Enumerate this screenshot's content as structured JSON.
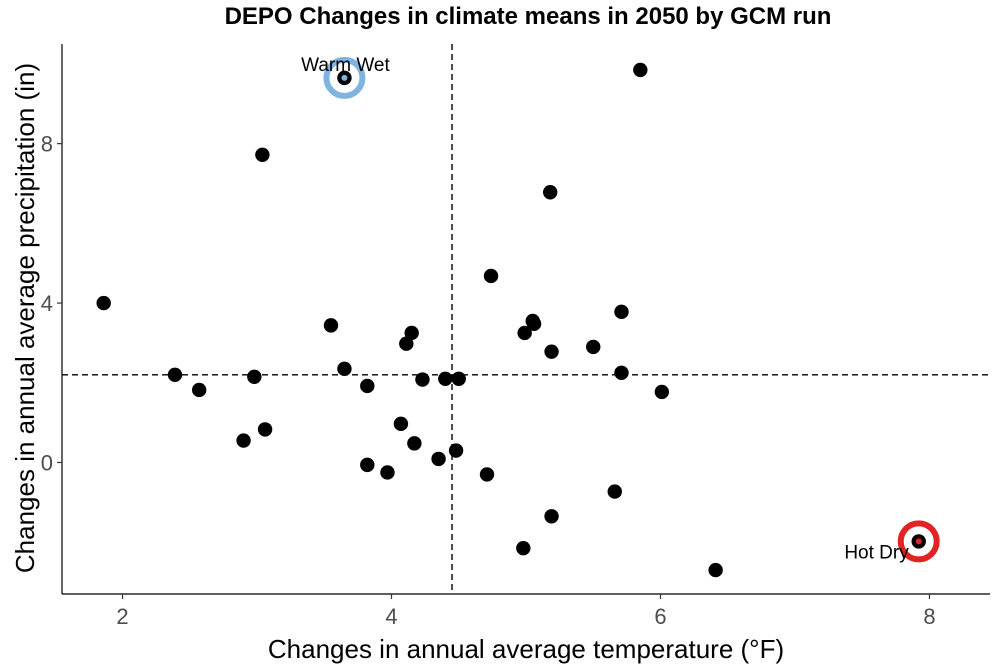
{
  "chart_data": {
    "type": "scatter",
    "title": "DEPO Changes in climate means in 2050 by GCM run",
    "xlabel": "Changes in annual average temperature (°F)",
    "ylabel": "Changes in annual average precipitation (in)",
    "xlim": [
      1.55,
      8.45
    ],
    "ylim": [
      -3.3,
      10.5
    ],
    "xticks": [
      2,
      4,
      6,
      8
    ],
    "yticks": [
      0,
      4,
      8
    ],
    "grid": false,
    "reference_lines": {
      "x": 4.45,
      "y": 2.2
    },
    "points": [
      {
        "x": 1.86,
        "y": 4.0
      },
      {
        "x": 2.39,
        "y": 2.2
      },
      {
        "x": 2.57,
        "y": 1.82
      },
      {
        "x": 2.9,
        "y": 0.55
      },
      {
        "x": 2.98,
        "y": 2.15
      },
      {
        "x": 3.04,
        "y": 7.72
      },
      {
        "x": 3.06,
        "y": 0.83
      },
      {
        "x": 3.55,
        "y": 3.44
      },
      {
        "x": 3.65,
        "y": 2.35
      },
      {
        "x": 3.65,
        "y": 9.65
      },
      {
        "x": 3.82,
        "y": 1.92
      },
      {
        "x": 3.82,
        "y": -0.06
      },
      {
        "x": 3.97,
        "y": -0.25
      },
      {
        "x": 4.07,
        "y": 0.97
      },
      {
        "x": 4.11,
        "y": 2.98
      },
      {
        "x": 4.15,
        "y": 3.25
      },
      {
        "x": 4.17,
        "y": 0.48
      },
      {
        "x": 4.23,
        "y": 2.08
      },
      {
        "x": 4.35,
        "y": 0.09
      },
      {
        "x": 4.4,
        "y": 2.1
      },
      {
        "x": 4.48,
        "y": 0.3
      },
      {
        "x": 4.5,
        "y": 2.1
      },
      {
        "x": 4.71,
        "y": -0.3
      },
      {
        "x": 4.74,
        "y": 4.68
      },
      {
        "x": 4.98,
        "y": -2.15
      },
      {
        "x": 4.99,
        "y": 3.25
      },
      {
        "x": 5.05,
        "y": 3.55
      },
      {
        "x": 5.06,
        "y": 3.48
      },
      {
        "x": 5.18,
        "y": 6.78
      },
      {
        "x": 5.19,
        "y": 2.78
      },
      {
        "x": 5.19,
        "y": -1.35
      },
      {
        "x": 5.5,
        "y": 2.9
      },
      {
        "x": 5.66,
        "y": -0.73
      },
      {
        "x": 5.71,
        "y": 3.78
      },
      {
        "x": 5.71,
        "y": 2.25
      },
      {
        "x": 5.85,
        "y": 9.85
      },
      {
        "x": 6.01,
        "y": 1.77
      },
      {
        "x": 6.41,
        "y": -2.7
      },
      {
        "x": 7.92,
        "y": -1.98
      }
    ],
    "highlights": [
      {
        "label": "Warm Wet",
        "x": 3.65,
        "y": 9.65,
        "color": "#7fb3e0"
      },
      {
        "label": "Hot Dry",
        "x": 7.92,
        "y": -1.98,
        "color": "#e02424"
      }
    ]
  }
}
